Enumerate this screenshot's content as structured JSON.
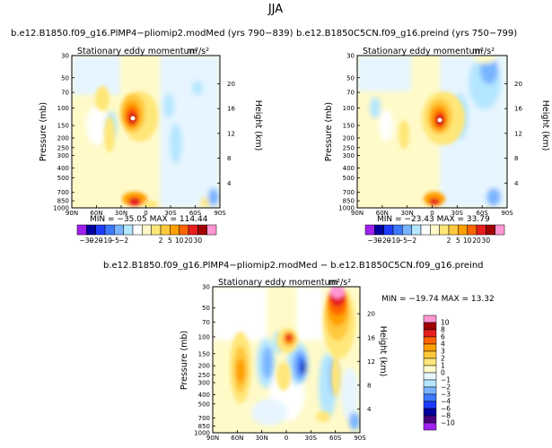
{
  "page_title": "JJA",
  "panels": [
    {
      "title": "b.e12.B1850.f09_g16.PlMP4−pliomip2.modMed  (yrs 790−839)",
      "subtitle": "Stationary eddy momentum",
      "units": "m²/s²",
      "ylabel": "Pressure  (mb)",
      "y2label": "Height  (km)",
      "stats": "MIN = −35.05   MAX = 114.44"
    },
    {
      "title": "b.e12.B1850C5CN.f09_g16.preind  (yrs 750−799)",
      "subtitle": "Stationary eddy momentum",
      "units": "m²/s²",
      "ylabel": "Pressure  (mb)",
      "y2label": "Height  (km)",
      "stats": "MIN = −23.43   MAX =  33.79"
    },
    {
      "title": "b.e12.B1850.f09_g16.PlMP4−pliomip2.modMed − b.e12.B1850C5CN.f09_g16.preind",
      "subtitle": "Stationary eddy momentum",
      "units": "m²/s²",
      "ylabel": "Pressure  (mb)",
      "y2label": "Height  (km)",
      "stats": "MIN = −19.74   MAX =  13.32"
    }
  ],
  "colorbar_top": {
    "labels": [
      "−30",
      "−20",
      "−10",
      "−5",
      "−2",
      "2",
      "5",
      "10",
      "20",
      "30"
    ],
    "colors": [
      "#a020f0",
      "#0000a0",
      "#1e3cff",
      "#3c78ff",
      "#78b4ff",
      "#b4e6ff",
      "#ffffff",
      "#fffac8",
      "#ffe678",
      "#ffc83c",
      "#ffa000",
      "#ff6400",
      "#e61e1e",
      "#a00000",
      "#ff96d2"
    ]
  },
  "colorbar_bottom": {
    "labels": [
      "10",
      "8",
      "6",
      "4",
      "3",
      "2",
      "1",
      "0",
      "−1",
      "−2",
      "−3",
      "−4",
      "−6",
      "−8",
      "−10"
    ],
    "colors": [
      "#ff96d2",
      "#a00000",
      "#e61e1e",
      "#ff6400",
      "#ffa000",
      "#ffc83c",
      "#ffe678",
      "#fffac8",
      "#e6f5ff",
      "#b4e6ff",
      "#78b4ff",
      "#3c78ff",
      "#1e3cff",
      "#0000a0",
      "#4b0082",
      "#a020f0"
    ]
  },
  "chart_data": [
    {
      "type": "heatmap",
      "title": "b.e12.B1850.f09_g16.PlMP4−pliomip2.modMed  (yrs 790−839)",
      "variable": "Stationary eddy momentum",
      "x_ticks": [
        "90N",
        "60N",
        "30N",
        "0",
        "30S",
        "60S",
        "90S"
      ],
      "x_values": [
        90,
        60,
        30,
        0,
        -30,
        -60,
        -90
      ],
      "y_ticks": [
        30,
        50,
        70,
        100,
        150,
        200,
        250,
        300,
        400,
        500,
        700,
        850,
        1000
      ],
      "y2_ticks": [
        20,
        16,
        12,
        8,
        4
      ],
      "min": -35.05,
      "max": 114.44
    },
    {
      "type": "heatmap",
      "title": "b.e12.B1850C5CN.f09_g16.preind  (yrs 750−799)",
      "variable": "Stationary eddy momentum",
      "x_ticks": [
        "90N",
        "60N",
        "30N",
        "0",
        "30S",
        "60S",
        "90S"
      ],
      "x_values": [
        90,
        60,
        30,
        0,
        -30,
        -60,
        -90
      ],
      "y_ticks": [
        30,
        50,
        70,
        100,
        150,
        200,
        250,
        300,
        400,
        500,
        700,
        850,
        1000
      ],
      "y2_ticks": [
        20,
        16,
        12,
        8,
        4
      ],
      "min": -23.43,
      "max": 33.79
    },
    {
      "type": "heatmap",
      "title": "b.e12.B1850.f09_g16.PlMP4−pliomip2.modMed − b.e12.B1850C5CN.f09_g16.preind",
      "variable": "Stationary eddy momentum",
      "x_ticks": [
        "90N",
        "60N",
        "30N",
        "0",
        "30S",
        "60S",
        "90S"
      ],
      "x_values": [
        90,
        60,
        30,
        0,
        -30,
        -60,
        -90
      ],
      "y_ticks": [
        30,
        50,
        70,
        100,
        150,
        200,
        250,
        300,
        400,
        500,
        700,
        850,
        1000
      ],
      "y2_ticks": [
        20,
        16,
        12,
        8,
        4
      ],
      "min": -19.74,
      "max": 13.32
    }
  ]
}
